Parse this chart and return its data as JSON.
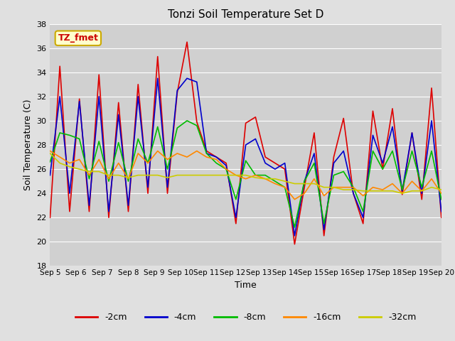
{
  "title": "Tonzi Soil Temperature Set D",
  "xlabel": "Time",
  "ylabel": "Soil Temperature (C)",
  "ylim": [
    18,
    38
  ],
  "xlim": [
    0,
    15
  ],
  "annotation": "TZ_fmet",
  "legend_labels": [
    "-2cm",
    "-4cm",
    "-8cm",
    "-16cm",
    "-32cm"
  ],
  "legend_colors": [
    "#dd0000",
    "#0000cc",
    "#00bb00",
    "#ff8800",
    "#cccc00"
  ],
  "x_tick_labels": [
    "Sep 5",
    "Sep 6",
    "Sep 7",
    "Sep 8",
    "Sep 9",
    "Sep 10",
    "Sep 11",
    "Sep 12",
    "Sep 13",
    "Sep 14",
    "Sep 15",
    "Sep 16",
    "Sep 17",
    "Sep 18",
    "Sep 19",
    "Sep 20"
  ],
  "series": {
    "d2cm": [
      22.0,
      34.5,
      22.5,
      31.8,
      22.5,
      33.8,
      22.0,
      31.5,
      22.5,
      33.0,
      24.0,
      35.3,
      24.0,
      32.3,
      36.5,
      29.9,
      27.5,
      27.0,
      26.5,
      21.5,
      29.8,
      30.3,
      27.0,
      26.5,
      26.0,
      19.8,
      24.5,
      29.0,
      20.5,
      27.0,
      30.2,
      24.0,
      21.5,
      30.8,
      26.0,
      31.0,
      23.9,
      29.0,
      23.5,
      32.7,
      22.0
    ],
    "d4cm": [
      25.5,
      32.0,
      24.0,
      31.6,
      23.0,
      32.0,
      22.5,
      30.5,
      23.0,
      32.0,
      24.5,
      33.5,
      24.5,
      32.5,
      33.5,
      33.2,
      27.3,
      27.0,
      26.3,
      22.0,
      28.0,
      28.5,
      26.5,
      26.0,
      26.5,
      20.5,
      25.0,
      27.3,
      21.0,
      26.5,
      27.5,
      24.0,
      22.0,
      28.8,
      26.5,
      29.5,
      24.2,
      29.0,
      24.0,
      30.0,
      22.5
    ],
    "d8cm": [
      26.6,
      29.0,
      28.8,
      28.5,
      25.2,
      28.3,
      25.0,
      28.2,
      25.0,
      28.5,
      26.5,
      29.5,
      26.0,
      29.4,
      30.0,
      29.6,
      27.3,
      26.5,
      26.0,
      23.5,
      26.7,
      25.5,
      25.5,
      25.0,
      24.5,
      21.2,
      25.0,
      26.5,
      21.5,
      25.5,
      25.8,
      24.5,
      22.5,
      27.5,
      26.0,
      27.5,
      24.3,
      27.5,
      24.5,
      27.5,
      23.5
    ],
    "d16cm": [
      27.5,
      27.0,
      26.5,
      26.8,
      25.5,
      26.8,
      25.2,
      26.5,
      25.2,
      27.3,
      26.5,
      27.5,
      26.8,
      27.3,
      27.0,
      27.5,
      27.0,
      26.8,
      26.0,
      25.5,
      25.2,
      25.5,
      25.2,
      24.8,
      24.5,
      23.5,
      24.0,
      25.2,
      23.8,
      24.5,
      24.5,
      24.5,
      23.8,
      24.5,
      24.3,
      24.8,
      24.0,
      25.0,
      24.2,
      25.2,
      24.0
    ],
    "d32cm": [
      27.3,
      26.5,
      26.2,
      26.0,
      25.8,
      25.8,
      25.5,
      25.5,
      25.3,
      25.5,
      25.5,
      25.5,
      25.3,
      25.5,
      25.5,
      25.5,
      25.5,
      25.5,
      25.5,
      25.5,
      25.5,
      25.3,
      25.2,
      25.2,
      25.0,
      24.8,
      24.8,
      24.8,
      24.5,
      24.5,
      24.3,
      24.3,
      24.2,
      24.2,
      24.2,
      24.2,
      24.0,
      24.2,
      24.2,
      24.5,
      24.3
    ]
  },
  "bg_color": "#e0e0e0",
  "plot_bg_color": "#d0d0d0"
}
